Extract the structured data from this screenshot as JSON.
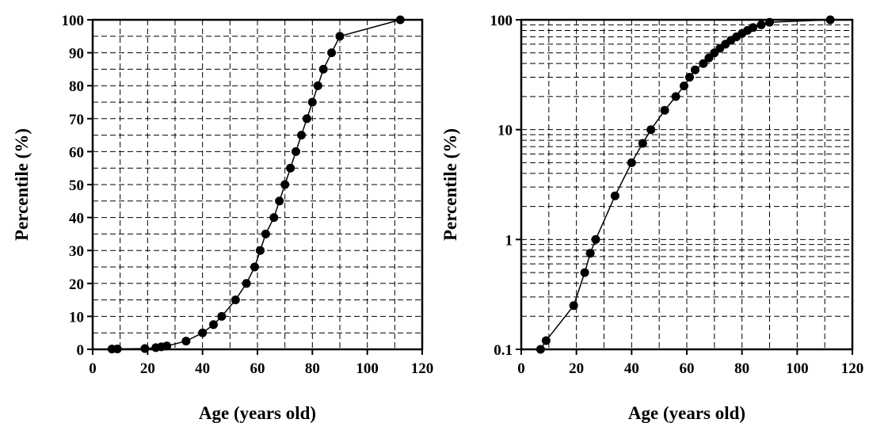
{
  "chart_data": [
    {
      "type": "line",
      "xlabel": "Age (years old)",
      "ylabel": "Percentile (%)",
      "xlim": [
        0,
        120
      ],
      "ylim": [
        0,
        100
      ],
      "yscale": "linear",
      "grid": true,
      "xticks": [
        "0",
        "20",
        "40",
        "60",
        "80",
        "100",
        "120"
      ],
      "yticks": [
        "0",
        "10",
        "20",
        "30",
        "40",
        "50",
        "60",
        "70",
        "80",
        "90",
        "100"
      ],
      "series": [
        {
          "x": [
            7,
            9,
            19,
            23,
            25,
            27,
            34,
            40,
            44,
            47,
            52,
            56,
            59,
            61,
            63,
            66,
            68,
            70,
            72,
            74,
            76,
            78,
            80,
            82,
            84,
            87,
            90,
            112
          ],
          "y": [
            0.1,
            0.12,
            0.25,
            0.5,
            0.75,
            1,
            2.5,
            5,
            7.5,
            10,
            15,
            20,
            25,
            30,
            35,
            40,
            45,
            50,
            55,
            60,
            65,
            70,
            75,
            80,
            85,
            90,
            95,
            100
          ]
        }
      ]
    },
    {
      "type": "line",
      "xlabel": "Age (years old)",
      "ylabel": "Percentile (%)",
      "xlim": [
        0,
        120
      ],
      "ylim": [
        0.1,
        100
      ],
      "yscale": "log",
      "grid": true,
      "xticks": [
        "0",
        "20",
        "40",
        "60",
        "80",
        "100",
        "120"
      ],
      "yticks": [
        "0.1",
        "1",
        "10",
        "100"
      ],
      "series": [
        {
          "x": [
            7,
            9,
            19,
            23,
            25,
            27,
            34,
            40,
            44,
            47,
            52,
            56,
            59,
            61,
            63,
            66,
            68,
            70,
            72,
            74,
            76,
            78,
            80,
            82,
            84,
            87,
            90,
            112
          ],
          "y": [
            0.1,
            0.12,
            0.25,
            0.5,
            0.75,
            1,
            2.5,
            5,
            7.5,
            10,
            15,
            20,
            25,
            30,
            35,
            40,
            45,
            50,
            55,
            60,
            65,
            70,
            75,
            80,
            85,
            90,
            95,
            100
          ]
        }
      ]
    }
  ]
}
